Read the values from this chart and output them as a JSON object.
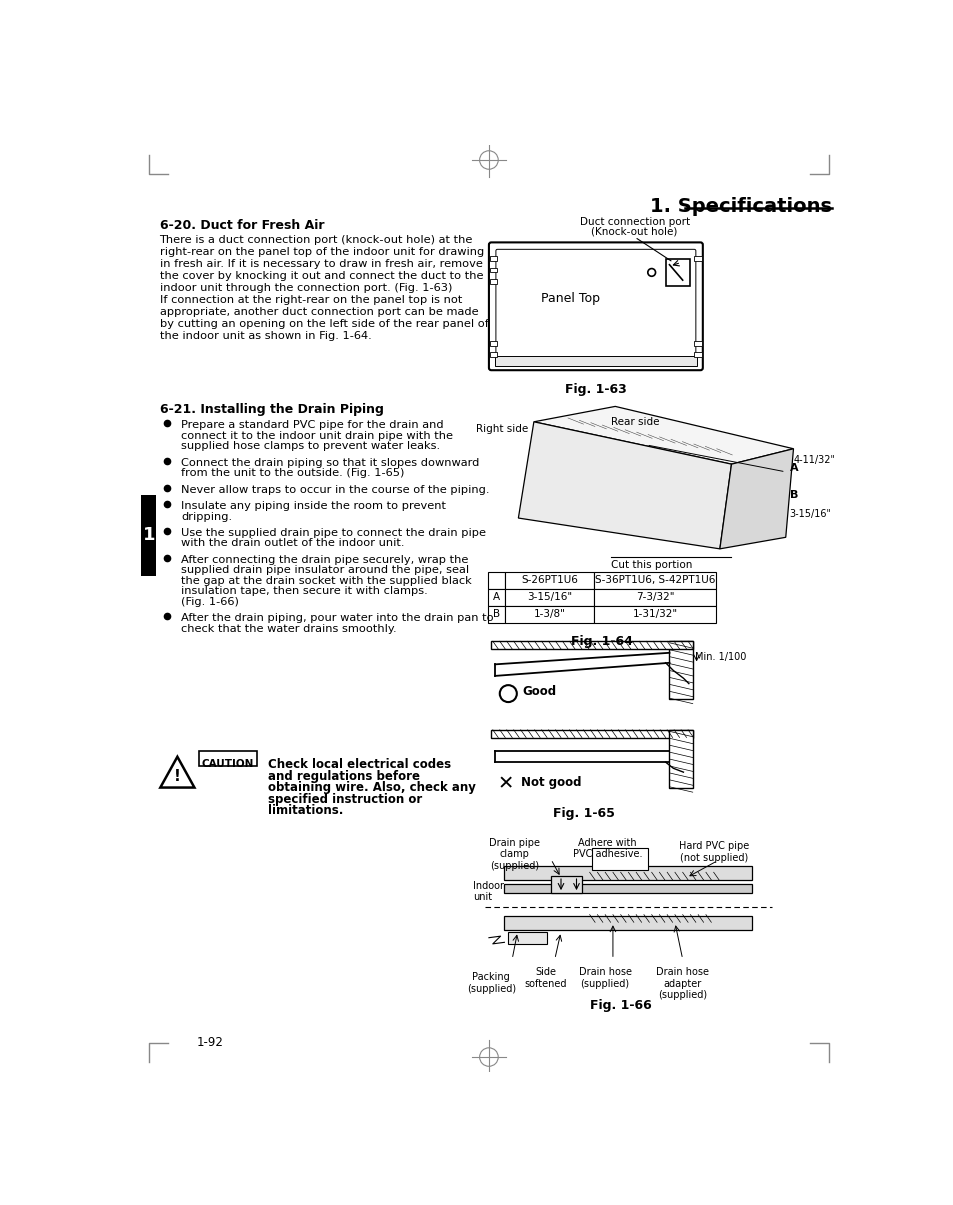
{
  "page_title": "1. Specifications",
  "page_number": "1-92",
  "bg_color": "#ffffff",
  "text_color": "#000000",
  "section_620_title": "6-20. Duct for Fresh Air",
  "section_620_body": [
    "There is a duct connection port (knock-out hole) at the",
    "right-rear on the panel top of the indoor unit for drawing",
    "in fresh air. If it is necessary to draw in fresh air, remove",
    "the cover by knocking it out and connect the duct to the",
    "indoor unit through the connection port. (Fig. 1-63)",
    "If connection at the right-rear on the panel top is not",
    "appropriate, another duct connection port can be made",
    "by cutting an opening on the left side of the rear panel of",
    "the indoor unit as shown in Fig. 1-64."
  ],
  "section_621_title": "6-21. Installing the Drain Piping",
  "bullets": [
    "Prepare a standard PVC pipe for the drain and\nconnect it to the indoor unit drain pipe with the\nsupplied hose clamps to prevent water leaks.",
    "Connect the drain piping so that it slopes downward\nfrom the unit to the outside. (Fig. 1-65)",
    "Never allow traps to occur in the course of the piping.",
    "Insulate any piping inside the room to prevent\ndripping.",
    "Use the supplied drain pipe to connect the drain pipe\nwith the drain outlet of the indoor unit.",
    "After connecting the drain pipe securely, wrap the\nsupplied drain pipe insulator around the pipe, seal\nthe gap at the drain socket with the supplied black\ninsulation tape, then secure it with clamps.\n(Fig. 1-66)",
    "After the drain piping, pour water into the drain pan to\ncheck that the water drains smoothly."
  ],
  "caution_text": "Check local electrical codes\nand regulations before\nobtaining wire. Also, check any\nspecified instruction or\nlimitations.",
  "fig63_label": "Fig. 1-63",
  "fig64_label": "Fig. 1-64",
  "fig65_label": "Fig. 1-65",
  "fig66_label": "Fig. 1-66",
  "table_header": [
    "",
    "S-26PT1U6",
    "S-36PT1U6, S-42PT1U6"
  ],
  "table_rows": [
    [
      "A",
      "3-15/16\"",
      "7-3/32\""
    ],
    [
      "B",
      "1-3/8\"",
      "1-31/32\""
    ]
  ]
}
